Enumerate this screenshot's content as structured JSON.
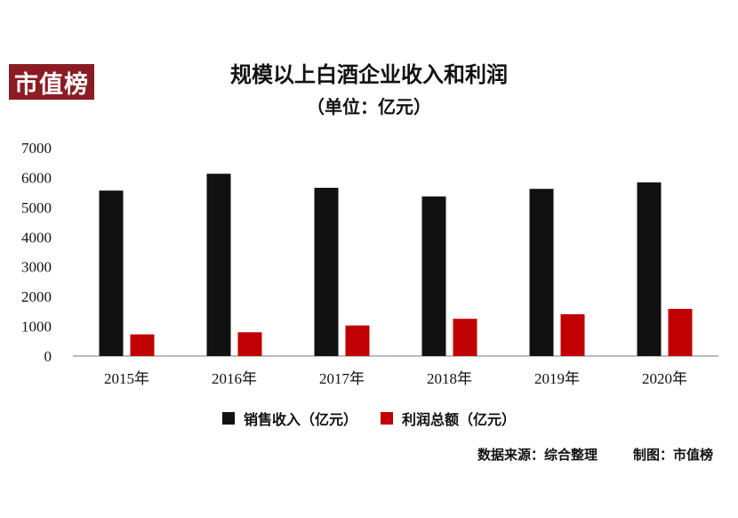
{
  "logo_text": "市值榜",
  "footer": {
    "source": "数据来源：综合整理",
    "made_by": "制图：市值榜"
  },
  "chart_data": {
    "type": "bar",
    "title": "规模以上白酒企业收入和利润",
    "subtitle": "（单位：亿元）",
    "categories": [
      "2015年",
      "2016年",
      "2017年",
      "2018年",
      "2019年",
      "2020年"
    ],
    "series": [
      {
        "name": "销售收入（亿元）",
        "color": "#111111",
        "values": [
          5560,
          6126,
          5654,
          5364,
          5618,
          5837
        ]
      },
      {
        "name": "利润总额（亿元）",
        "color": "#c00000",
        "values": [
          727,
          798,
          1028,
          1251,
          1404,
          1585
        ]
      }
    ],
    "y_ticks": [
      "0",
      "1000",
      "2000",
      "3000",
      "4000",
      "5000",
      "6000",
      "7000"
    ],
    "ylim": [
      0,
      7000
    ],
    "grid": false,
    "legend_position": "bottom"
  }
}
